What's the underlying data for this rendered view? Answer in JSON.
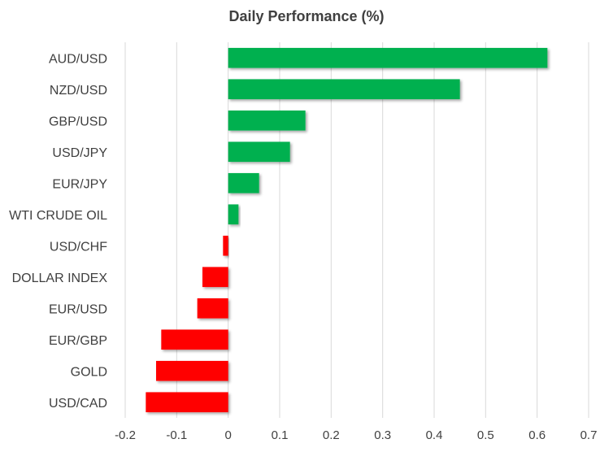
{
  "chart_data": {
    "type": "bar",
    "orientation": "horizontal",
    "title": "Daily Performance (%)",
    "xlabel": "",
    "ylabel": "",
    "xlim": [
      -0.2,
      0.7
    ],
    "x_ticks": [
      "-0.2",
      "-0.1",
      "0",
      "0.1",
      "0.2",
      "0.3",
      "0.4",
      "0.5",
      "0.6",
      "0.7"
    ],
    "x_tick_values": [
      -0.2,
      -0.1,
      0,
      0.1,
      0.2,
      0.3,
      0.4,
      0.5,
      0.6,
      0.7
    ],
    "grid": "vertical",
    "categories": [
      "AUD/USD",
      "NZD/USD",
      "GBP/USD",
      "USD/JPY",
      "EUR/JPY",
      "WTI CRUDE OIL",
      "USD/CHF",
      "DOLLAR INDEX",
      "EUR/USD",
      "EUR/GBP",
      "GOLD",
      "USD/CAD"
    ],
    "values": [
      0.62,
      0.45,
      0.15,
      0.12,
      0.06,
      0.02,
      -0.01,
      -0.05,
      -0.06,
      -0.13,
      -0.14,
      -0.16
    ],
    "colors": {
      "positive": "#00B050",
      "negative": "#FF0000",
      "grid": "#D9D9D9"
    }
  }
}
